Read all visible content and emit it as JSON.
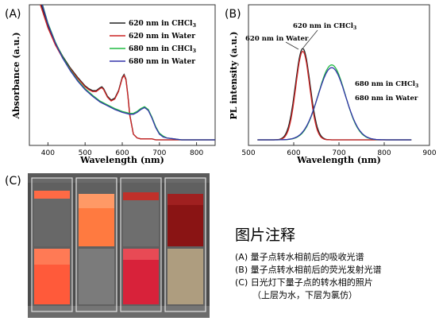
{
  "chart_data": [
    {
      "panel_label": "(A)",
      "type": "line",
      "xlabel": "Wavelength (nm)",
      "ylabel": "Absorbance (a.u.)",
      "xlim": [
        350,
        850
      ],
      "x_ticks": [
        400,
        500,
        600,
        700,
        800
      ],
      "legend_position": "top-right",
      "series": [
        {
          "name": "620 nm in CHCl",
          "name_sub": "3",
          "color": "#222222",
          "x": [
            360,
            380,
            400,
            420,
            440,
            460,
            480,
            500,
            510,
            520,
            530,
            540,
            545,
            550,
            560,
            570,
            580,
            590,
            600,
            605,
            610,
            615,
            620,
            630,
            640,
            650,
            660,
            670,
            680,
            690,
            700,
            720,
            750,
            800,
            850
          ],
          "y": [
            1.85,
            1.45,
            1.2,
            1.02,
            0.88,
            0.76,
            0.66,
            0.57,
            0.54,
            0.52,
            0.52,
            0.55,
            0.56,
            0.54,
            0.46,
            0.42,
            0.44,
            0.52,
            0.66,
            0.69,
            0.64,
            0.48,
            0.27,
            0.06,
            0.02,
            0.01,
            0.01,
            0.01,
            0.01,
            0.0,
            0.0,
            0.0,
            0.0,
            0.0,
            0.0
          ]
        },
        {
          "name": "620 nm in Water",
          "color": "#cc2222",
          "x": [
            360,
            380,
            400,
            420,
            440,
            460,
            480,
            500,
            510,
            520,
            530,
            540,
            545,
            550,
            560,
            570,
            580,
            590,
            600,
            605,
            610,
            615,
            620,
            630,
            640,
            650,
            660,
            670,
            680,
            690,
            700,
            720,
            750,
            800,
            850
          ],
          "y": [
            1.85,
            1.42,
            1.18,
            1.0,
            0.86,
            0.75,
            0.65,
            0.56,
            0.53,
            0.51,
            0.51,
            0.54,
            0.55,
            0.53,
            0.45,
            0.41,
            0.43,
            0.51,
            0.65,
            0.68,
            0.63,
            0.47,
            0.26,
            0.06,
            0.02,
            0.01,
            0.01,
            0.01,
            0.01,
            0.0,
            0.0,
            0.0,
            0.0,
            0.0,
            0.0
          ]
        },
        {
          "name": "680 nm in CHCl",
          "name_sub": "3",
          "color": "#22bb44",
          "x": [
            360,
            380,
            400,
            420,
            440,
            460,
            480,
            500,
            520,
            540,
            560,
            580,
            600,
            620,
            630,
            640,
            650,
            660,
            670,
            680,
            690,
            700,
            710,
            720,
            740,
            760,
            800,
            850
          ],
          "y": [
            1.88,
            1.5,
            1.23,
            1.03,
            0.87,
            0.74,
            0.63,
            0.54,
            0.47,
            0.41,
            0.37,
            0.33,
            0.3,
            0.28,
            0.28,
            0.3,
            0.33,
            0.35,
            0.32,
            0.24,
            0.14,
            0.07,
            0.04,
            0.02,
            0.01,
            0.0,
            0.0,
            0.0
          ]
        },
        {
          "name": "680 nm in Water",
          "color": "#3333aa",
          "x": [
            360,
            380,
            400,
            420,
            440,
            460,
            480,
            500,
            520,
            540,
            560,
            580,
            600,
            620,
            630,
            640,
            650,
            660,
            670,
            680,
            690,
            700,
            710,
            720,
            740,
            760,
            800,
            850
          ],
          "y": [
            1.88,
            1.49,
            1.22,
            1.02,
            0.86,
            0.73,
            0.62,
            0.53,
            0.46,
            0.4,
            0.36,
            0.32,
            0.29,
            0.27,
            0.27,
            0.29,
            0.32,
            0.34,
            0.31,
            0.23,
            0.13,
            0.06,
            0.03,
            0.02,
            0.01,
            0.0,
            0.0,
            0.0
          ]
        }
      ]
    },
    {
      "panel_label": "(B)",
      "type": "line",
      "xlabel": "Wavelength (nm)",
      "ylabel": "PL intensity (a.u.)",
      "xlim": [
        500,
        900
      ],
      "x_ticks": [
        500,
        600,
        700,
        800,
        900
      ],
      "pl_peaks": [
        {
          "label": "620 nm in CHCl",
          "label_sub": "3",
          "color": "#222222",
          "center": 620,
          "fwhm": 38,
          "height": 1.0
        },
        {
          "label": "620 nm in Water",
          "color": "#cc2222",
          "center": 620,
          "fwhm": 36,
          "height": 0.97
        },
        {
          "label": "680 nm in CHCl",
          "label_sub": "3",
          "color": "#22bb44",
          "center": 684,
          "fwhm": 70,
          "height": 0.82
        },
        {
          "label": "680 nm in Water",
          "color": "#3333aa",
          "center": 684,
          "fwhm": 72,
          "height": 0.79
        }
      ]
    }
  ],
  "photo": {
    "panel_label": "(C)",
    "caption_title": "图片注释",
    "caption_lines": [
      "(A) 量子点转水相前后的吸收光谱",
      "(B) 量子点转水相前后的荧光发射光谱",
      "(C) 日光灯下量子点的转水相的照片",
      "（上层为水，下层为氯仿）"
    ]
  }
}
